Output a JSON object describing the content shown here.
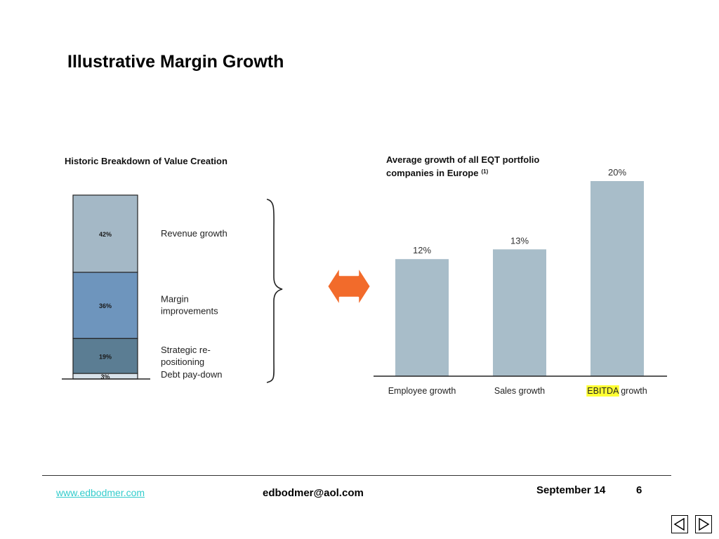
{
  "slide": {
    "title": "Illustrative Margin Growth"
  },
  "left_panel": {
    "title": "Historic Breakdown of Value Creation",
    "stack_colors": [
      "#a4b8c6",
      "#6e95bd",
      "#5b7d93",
      "#d8e2ea"
    ]
  },
  "right_panel": {
    "title_line1": "Average growth of all EQT portfolio",
    "title_line2": "companies in Europe",
    "footnote_mark": "(1)",
    "bar_color": "#a8bdc9",
    "highlight_color": "#ffff33",
    "category_suffix": "growth"
  },
  "connector": {
    "icon": "double-arrow-icon",
    "color": "#f26b2b"
  },
  "chart_data": [
    {
      "type": "bar",
      "stacked": true,
      "title": "Historic Breakdown of Value Creation",
      "series": [
        {
          "name": "Revenue growth",
          "value": 42,
          "label": "42%"
        },
        {
          "name": "Margin improvements",
          "value": 36,
          "label": "36%"
        },
        {
          "name": "Strategic re-positioning",
          "value": 19,
          "label": "19%"
        },
        {
          "name": "Debt pay-down",
          "value": 3,
          "label": "3%"
        }
      ],
      "legend_lines": [
        [
          "Revenue growth"
        ],
        [
          "Margin",
          "improvements"
        ],
        [
          "Strategic re-",
          "positioning"
        ],
        [
          "Debt pay-down"
        ]
      ],
      "total": 100
    },
    {
      "type": "bar",
      "title": "Average growth of all EQT portfolio companies in Europe (1)",
      "categories": [
        "Employee growth",
        "Sales growth",
        "EBITDA growth"
      ],
      "category_prefixes": [
        "Employee",
        "Sales",
        "EBITDA"
      ],
      "values": [
        12,
        13,
        20
      ],
      "labels": [
        "12%",
        "13%",
        "20%"
      ],
      "highlighted_prefix": "EBITDA",
      "ylim": [
        0,
        21
      ]
    }
  ],
  "footer": {
    "website": "www.edbodmer.com",
    "email": "edbodmer@aol.com",
    "date": "September 14",
    "page_number": "6"
  },
  "nav": {
    "prev_icon": "triangle-left-icon",
    "next_icon": "triangle-right-icon"
  }
}
